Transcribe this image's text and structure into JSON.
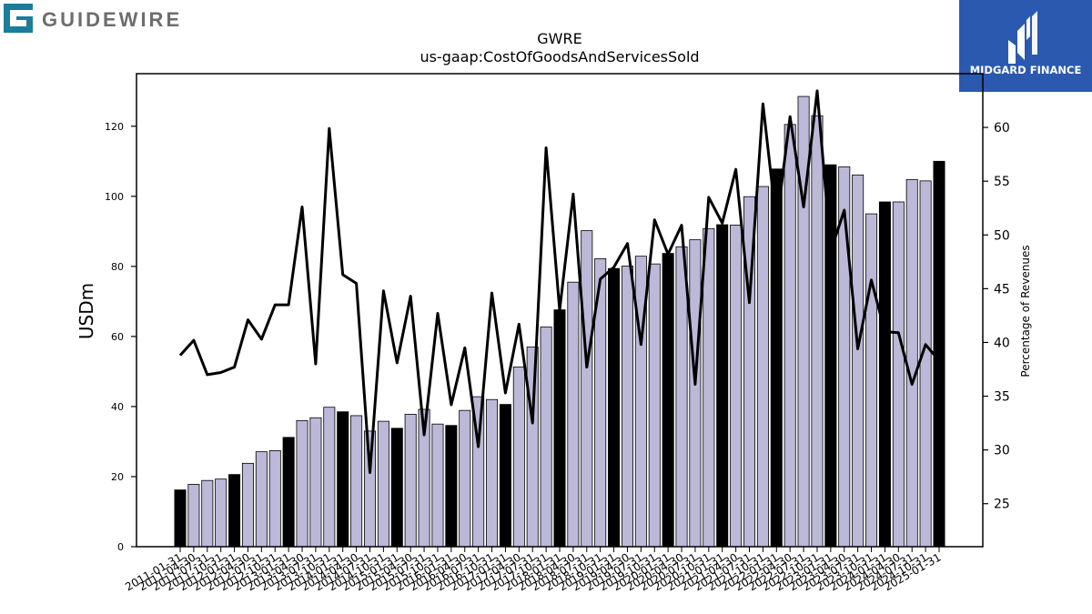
{
  "branding": {
    "left_logo_text": "GUIDEWIRE",
    "left_logo_icon": "guidewire-g-icon",
    "left_logo_color": "#1a7d9a",
    "left_text_color": "#6d6d6d",
    "right_logo_text": "MIDGARD FINANCE",
    "right_logo_icon": "midgard-m-icon",
    "right_logo_bg": "#2b59b0"
  },
  "chart_data": {
    "type": "bar",
    "title": "GWRE",
    "subtitle": "us-gaap:CostOfGoodsAndServicesSold",
    "ylabel": "USDm",
    "y2label": "Percentage of Revenues",
    "ylim": [
      0,
      135
    ],
    "y2lim": [
      21,
      65
    ],
    "yticks": [
      0,
      20,
      40,
      60,
      80,
      100,
      120
    ],
    "y2ticks": [
      25,
      30,
      35,
      40,
      45,
      50,
      55,
      60
    ],
    "grid": false,
    "colors": {
      "annual_bar": "#000000",
      "quarter_bar": "#bcb8d8",
      "bar_edge": "#000000",
      "line": "#000000"
    },
    "categories": [
      "2011-01-31",
      "2011-04-30",
      "2011-07-31",
      "2011-10-31",
      "2012-01-31",
      "2012-04-30",
      "2012-07-31",
      "2012-10-31",
      "2013-01-31",
      "2013-04-30",
      "2013-07-31",
      "2013-10-31",
      "2014-01-31",
      "2014-04-30",
      "2014-07-31",
      "2014-10-31",
      "2015-01-31",
      "2015-04-30",
      "2015-07-31",
      "2015-10-31",
      "2016-01-31",
      "2016-04-30",
      "2016-07-31",
      "2016-10-31",
      "2017-01-31",
      "2017-04-30",
      "2017-07-31",
      "2017-10-31",
      "2018-01-31",
      "2018-04-30",
      "2018-07-31",
      "2018-10-31",
      "2019-01-31",
      "2019-04-30",
      "2019-07-31",
      "2019-10-31",
      "2020-01-31",
      "2020-04-30",
      "2020-07-31",
      "2020-10-31",
      "2021-01-31",
      "2021-04-30",
      "2021-07-31",
      "2021-10-31",
      "2022-01-31",
      "2022-04-30",
      "2022-07-31",
      "2022-10-31",
      "2023-01-31",
      "2023-04-30",
      "2023-07-31",
      "2023-10-31",
      "2024-01-31",
      "2024-04-30",
      "2024-07-31",
      "2024-10-31",
      "2025-01-31"
    ],
    "series": [
      {
        "kind": "bar",
        "values": [
          16.2,
          17.8,
          18.9,
          19.3,
          20.6,
          23.8,
          27.1,
          27.4,
          31.2,
          36.0,
          36.8,
          39.8,
          38.5,
          37.4,
          33.0,
          35.8,
          33.8,
          37.8,
          39.2,
          35.0,
          34.6,
          38.9,
          42.8,
          42.0,
          40.6,
          51.3,
          57.0,
          62.7,
          67.6,
          75.5,
          90.2,
          82.2,
          79.4,
          80.1,
          82.9,
          80.7,
          83.7,
          85.6,
          87.6,
          90.8,
          91.9,
          91.8,
          99.9,
          102.8,
          107.8,
          120.5,
          128.5,
          123.0,
          109.0,
          108.4,
          106.1,
          95.0,
          98.4,
          98.4,
          104.8,
          104.4,
          110.0
        ],
        "highlight": [
          0,
          4,
          8,
          12,
          16,
          20,
          24,
          28,
          32,
          36,
          40,
          44,
          48,
          52,
          56
        ]
      },
      {
        "kind": "line",
        "axis": "y2",
        "values": [
          38.8,
          40.2,
          37.0,
          37.2,
          37.7,
          42.1,
          40.3,
          43.5,
          43.5,
          52.6,
          38.0,
          59.9,
          46.3,
          45.5,
          27.9,
          44.8,
          38.1,
          44.3,
          31.4,
          42.7,
          34.2,
          39.5,
          30.3,
          44.6,
          35.3,
          41.7,
          32.5,
          58.1,
          43.0,
          53.8,
          37.7,
          45.9,
          47.0,
          49.2,
          39.8,
          51.4,
          48.2,
          50.9,
          36.1,
          53.5,
          51.1,
          56.1,
          43.7,
          62.2,
          51.0,
          61.0,
          52.6,
          63.4,
          48.5,
          52.3,
          39.4,
          45.8,
          41.0,
          40.9,
          36.1,
          39.8,
          38.3
        ]
      }
    ]
  }
}
